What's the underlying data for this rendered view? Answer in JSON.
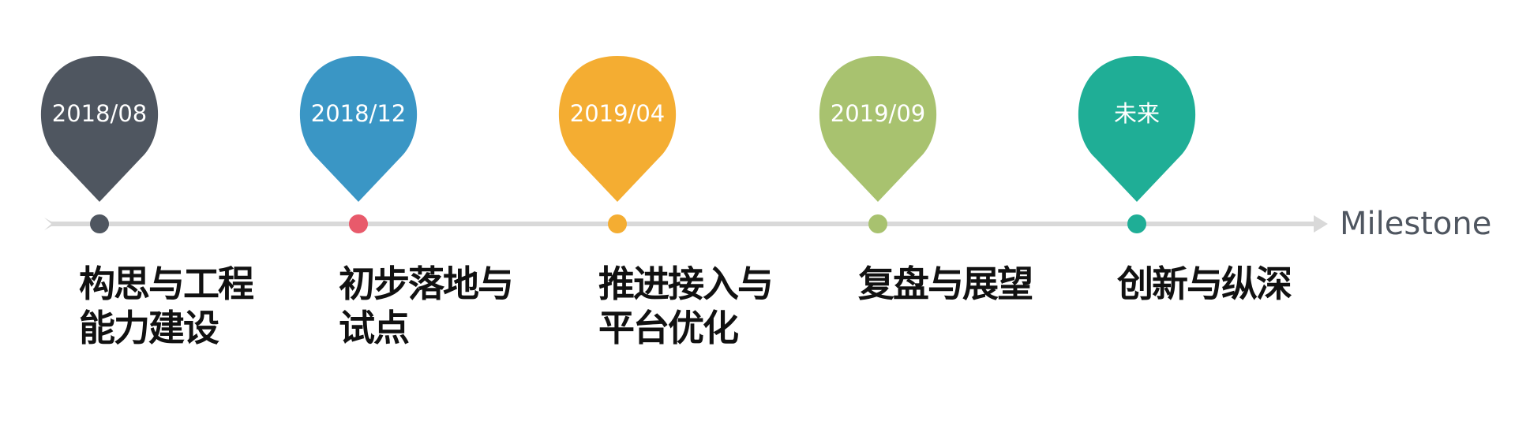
{
  "milestone_label": "Milestone",
  "colors": {
    "axis": "#d9d9d9",
    "text": "#111111",
    "milestone_text": "#4f5660"
  },
  "milestones": [
    {
      "date": "2018/08",
      "color": "#4f5660",
      "lines": [
        "构思与工程",
        "能力建设"
      ],
      "dot_color": "#4f5660"
    },
    {
      "date": "2018/12",
      "color": "#3a96c5",
      "lines": [
        "初步落地与",
        "试点"
      ],
      "dot_color": "#e85a6b"
    },
    {
      "date": "2019/04",
      "color": "#f4ad32",
      "lines": [
        "推进接入与",
        "平台优化"
      ],
      "dot_color": "#f4ad32"
    },
    {
      "date": "2019/09",
      "color": "#a8c26f",
      "lines": [
        "复盘与展望"
      ],
      "dot_color": "#a8c26f"
    },
    {
      "date": "未来",
      "color": "#1fae96",
      "lines": [
        "创新与纵深"
      ],
      "dot_color": "#1fae96"
    }
  ]
}
